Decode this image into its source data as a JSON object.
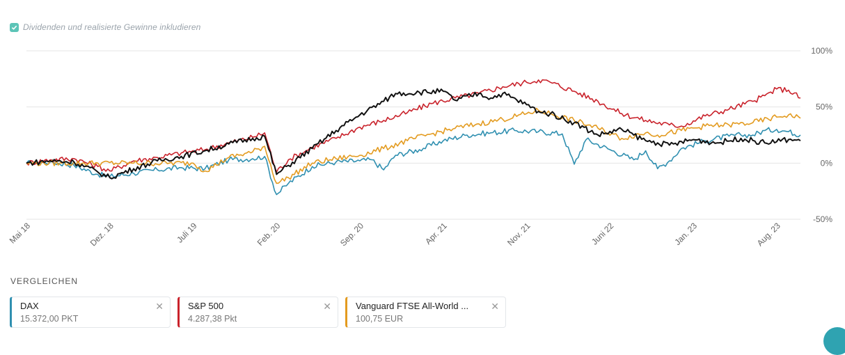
{
  "option": {
    "label": "Dividenden und realisierte Gewinne inkludieren",
    "checked": true
  },
  "chart_data": {
    "type": "line",
    "y_ticks": [
      100,
      50,
      0,
      -50
    ],
    "y_tick_labels": [
      "100%",
      "50%",
      "0%",
      "-50%"
    ],
    "ylim": [
      -50,
      100
    ],
    "x_tick_labels": [
      "Mai 18",
      "Dez. 18",
      "Juli 19",
      "Feb. 20",
      "Sep. 20",
      "Apr. 21",
      "Nov. 21",
      "Juni 22",
      "Jan. 23",
      "Aug. 23"
    ],
    "xlim": [
      0,
      65
    ],
    "x_ticks": [
      0,
      7,
      14,
      21,
      28,
      35,
      42,
      49,
      56,
      63
    ],
    "grid": true,
    "series": [
      {
        "name": "DAX",
        "color": "#2f8fb0",
        "points": [
          [
            0,
            0
          ],
          [
            2,
            1
          ],
          [
            4,
            -2
          ],
          [
            6,
            -10
          ],
          [
            7,
            -12
          ],
          [
            9,
            -9
          ],
          [
            11,
            -6
          ],
          [
            13,
            -4
          ],
          [
            15,
            -5
          ],
          [
            17,
            3
          ],
          [
            19,
            4
          ],
          [
            20,
            6
          ],
          [
            21,
            -28
          ],
          [
            22,
            -18
          ],
          [
            24,
            -3
          ],
          [
            26,
            1
          ],
          [
            28,
            2
          ],
          [
            29,
            3
          ],
          [
            30,
            -6
          ],
          [
            31,
            7
          ],
          [
            33,
            12
          ],
          [
            35,
            20
          ],
          [
            37,
            25
          ],
          [
            39,
            27
          ],
          [
            41,
            29
          ],
          [
            43,
            28
          ],
          [
            45,
            26
          ],
          [
            46,
            -1
          ],
          [
            47,
            21
          ],
          [
            49,
            12
          ],
          [
            51,
            3
          ],
          [
            52,
            11
          ],
          [
            53,
            -5
          ],
          [
            54,
            2
          ],
          [
            55,
            13
          ],
          [
            57,
            20
          ],
          [
            59,
            24
          ],
          [
            60,
            25
          ],
          [
            61,
            25
          ],
          [
            62,
            29
          ],
          [
            63,
            30
          ],
          [
            64,
            28
          ],
          [
            65,
            25
          ]
        ]
      },
      {
        "name": "S&P 500",
        "color": "#c9222b",
        "points": [
          [
            0,
            0
          ],
          [
            2,
            3
          ],
          [
            4,
            4
          ],
          [
            6,
            -3
          ],
          [
            7,
            -7
          ],
          [
            9,
            2
          ],
          [
            11,
            5
          ],
          [
            13,
            9
          ],
          [
            15,
            12
          ],
          [
            17,
            18
          ],
          [
            19,
            23
          ],
          [
            20,
            27
          ],
          [
            21,
            -8
          ],
          [
            22,
            3
          ],
          [
            24,
            14
          ],
          [
            26,
            22
          ],
          [
            28,
            32
          ],
          [
            30,
            38
          ],
          [
            32,
            45
          ],
          [
            34,
            53
          ],
          [
            36,
            58
          ],
          [
            38,
            62
          ],
          [
            40,
            68
          ],
          [
            42,
            72
          ],
          [
            43,
            74
          ],
          [
            44,
            72
          ],
          [
            46,
            64
          ],
          [
            48,
            55
          ],
          [
            50,
            44
          ],
          [
            52,
            38
          ],
          [
            54,
            34
          ],
          [
            55,
            33
          ],
          [
            57,
            42
          ],
          [
            59,
            48
          ],
          [
            61,
            55
          ],
          [
            62,
            60
          ],
          [
            63,
            66
          ],
          [
            64,
            65
          ],
          [
            65,
            58
          ]
        ]
      },
      {
        "name": "Vanguard FTSE All-World ...",
        "color": "#e39b20",
        "points": [
          [
            0,
            0
          ],
          [
            3,
            0
          ],
          [
            6,
            0
          ],
          [
            9,
            0
          ],
          [
            12,
            0
          ],
          [
            14,
            0
          ],
          [
            15,
            -7
          ],
          [
            17,
            5
          ],
          [
            19,
            10
          ],
          [
            20,
            15
          ],
          [
            21,
            -18
          ],
          [
            22,
            -13
          ],
          [
            24,
            0
          ],
          [
            26,
            4
          ],
          [
            28,
            7
          ],
          [
            30,
            13
          ],
          [
            32,
            20
          ],
          [
            34,
            26
          ],
          [
            36,
            31
          ],
          [
            38,
            35
          ],
          [
            40,
            39
          ],
          [
            42,
            44
          ],
          [
            43,
            47
          ],
          [
            44,
            44
          ],
          [
            46,
            38
          ],
          [
            48,
            31
          ],
          [
            50,
            22
          ],
          [
            52,
            27
          ],
          [
            53,
            25
          ],
          [
            55,
            29
          ],
          [
            57,
            33
          ],
          [
            59,
            34
          ],
          [
            61,
            36
          ],
          [
            63,
            41
          ],
          [
            64,
            43
          ],
          [
            65,
            40
          ]
        ]
      },
      {
        "name": "",
        "color": "#111111",
        "points": [
          [
            0,
            0
          ],
          [
            2,
            2
          ],
          [
            4,
            1
          ],
          [
            6,
            -8
          ],
          [
            7,
            -13
          ],
          [
            9,
            -5
          ],
          [
            11,
            2
          ],
          [
            13,
            6
          ],
          [
            15,
            11
          ],
          [
            17,
            17
          ],
          [
            19,
            22
          ],
          [
            20,
            24
          ],
          [
            21,
            -10
          ],
          [
            22,
            -2
          ],
          [
            24,
            13
          ],
          [
            26,
            29
          ],
          [
            28,
            43
          ],
          [
            30,
            55
          ],
          [
            31,
            62
          ],
          [
            33,
            63
          ],
          [
            35,
            64
          ],
          [
            36,
            56
          ],
          [
            38,
            62
          ],
          [
            39,
            58
          ],
          [
            40,
            62
          ],
          [
            42,
            52
          ],
          [
            43,
            46
          ],
          [
            44,
            44
          ],
          [
            46,
            36
          ],
          [
            48,
            25
          ],
          [
            50,
            30
          ],
          [
            52,
            20
          ],
          [
            53,
            18
          ],
          [
            54,
            16
          ],
          [
            56,
            21
          ],
          [
            58,
            18
          ],
          [
            60,
            22
          ],
          [
            62,
            18
          ],
          [
            64,
            21
          ],
          [
            65,
            20
          ]
        ]
      }
    ]
  },
  "compare": {
    "title": "VERGLEICHEN",
    "items": [
      {
        "name": "DAX",
        "value": "15.372,00 PKT",
        "color": "#2f8fb0"
      },
      {
        "name": "S&P 500",
        "value": "4.287,38 Pkt",
        "color": "#c9222b"
      },
      {
        "name": "Vanguard FTSE All-World ...",
        "value": "100,75 EUR",
        "color": "#e39b20"
      }
    ],
    "close_glyph": "✕"
  }
}
